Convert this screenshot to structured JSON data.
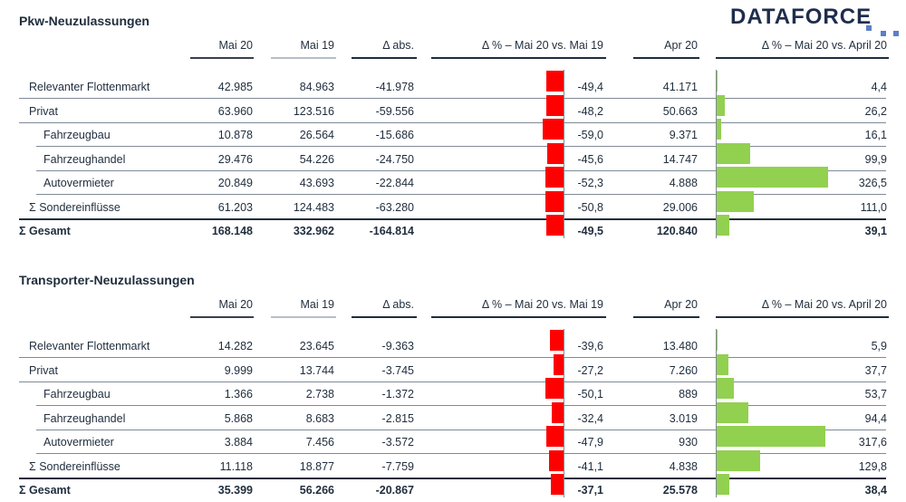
{
  "logo": {
    "text": "DATAFORCE"
  },
  "colors": {
    "negative_bar": "#ff0000",
    "positive_bar": "#92d050",
    "text": "#1f2d3d"
  },
  "chart_data": [
    {
      "type": "table",
      "title": "Pkw-Neuzulassungen",
      "columns": [
        "Mai 20",
        "Mai 19",
        "Δ abs.",
        "Δ % – Mai 20 vs. Mai 19",
        "Apr 20",
        "Δ % – Mai 20 vs. April 20"
      ],
      "rows": [
        {
          "label": "Relevanter Flottenmarkt",
          "indent": 0,
          "bold": false,
          "mai20": "42.985",
          "mai19": "84.963",
          "dabs": "-41.978",
          "dpct": "-49,4",
          "dpct_val": -49.4,
          "apr20": "41.171",
          "dpct2": "4,4",
          "dpct2_val": 4.4
        },
        {
          "label": "Privat",
          "indent": 0,
          "bold": false,
          "mai20": "63.960",
          "mai19": "123.516",
          "dabs": "-59.556",
          "dpct": "-48,2",
          "dpct_val": -48.2,
          "apr20": "50.663",
          "dpct2": "26,2",
          "dpct2_val": 26.2
        },
        {
          "label": "Fahrzeugbau",
          "indent": 1,
          "bold": false,
          "mai20": "10.878",
          "mai19": "26.564",
          "dabs": "-15.686",
          "dpct": "-59,0",
          "dpct_val": -59.0,
          "apr20": "9.371",
          "dpct2": "16,1",
          "dpct2_val": 16.1
        },
        {
          "label": "Fahrzeughandel",
          "indent": 1,
          "bold": false,
          "mai20": "29.476",
          "mai19": "54.226",
          "dabs": "-24.750",
          "dpct": "-45,6",
          "dpct_val": -45.6,
          "apr20": "14.747",
          "dpct2": "99,9",
          "dpct2_val": 99.9
        },
        {
          "label": "Autovermieter",
          "indent": 1,
          "bold": false,
          "mai20": "20.849",
          "mai19": "43.693",
          "dabs": "-22.844",
          "dpct": "-52,3",
          "dpct_val": -52.3,
          "apr20": "4.888",
          "dpct2": "326,5",
          "dpct2_val": 326.5
        },
        {
          "label": "Σ Sondereinflüsse",
          "indent": 0,
          "bold": false,
          "mai20": "61.203",
          "mai19": "124.483",
          "dabs": "-63.280",
          "dpct": "-50,8",
          "dpct_val": -50.8,
          "apr20": "29.006",
          "dpct2": "111,0",
          "dpct2_val": 111.0
        },
        {
          "label": "Σ Gesamt",
          "indent": 0,
          "bold": true,
          "mai20": "168.148",
          "mai19": "332.962",
          "dabs": "-164.814",
          "dpct": "-49,5",
          "dpct_val": -49.5,
          "apr20": "120.840",
          "dpct2": "39,1",
          "dpct2_val": 39.1
        }
      ]
    },
    {
      "type": "table",
      "title": "Transporter-Neuzulassungen",
      "columns": [
        "Mai 20",
        "Mai 19",
        "Δ abs.",
        "Δ % – Mai 20 vs. Mai 19",
        "Apr 20",
        "Δ % – Mai 20 vs. April 20"
      ],
      "rows": [
        {
          "label": "Relevanter Flottenmarkt",
          "indent": 0,
          "bold": false,
          "mai20": "14.282",
          "mai19": "23.645",
          "dabs": "-9.363",
          "dpct": "-39,6",
          "dpct_val": -39.6,
          "apr20": "13.480",
          "dpct2": "5,9",
          "dpct2_val": 5.9
        },
        {
          "label": "Privat",
          "indent": 0,
          "bold": false,
          "mai20": "9.999",
          "mai19": "13.744",
          "dabs": "-3.745",
          "dpct": "-27,2",
          "dpct_val": -27.2,
          "apr20": "7.260",
          "dpct2": "37,7",
          "dpct2_val": 37.7
        },
        {
          "label": "Fahrzeugbau",
          "indent": 1,
          "bold": false,
          "mai20": "1.366",
          "mai19": "2.738",
          "dabs": "-1.372",
          "dpct": "-50,1",
          "dpct_val": -50.1,
          "apr20": "889",
          "dpct2": "53,7",
          "dpct2_val": 53.7
        },
        {
          "label": "Fahrzeughandel",
          "indent": 1,
          "bold": false,
          "mai20": "5.868",
          "mai19": "8.683",
          "dabs": "-2.815",
          "dpct": "-32,4",
          "dpct_val": -32.4,
          "apr20": "3.019",
          "dpct2": "94,4",
          "dpct2_val": 94.4
        },
        {
          "label": "Autovermieter",
          "indent": 1,
          "bold": false,
          "mai20": "3.884",
          "mai19": "7.456",
          "dabs": "-3.572",
          "dpct": "-47,9",
          "dpct_val": -47.9,
          "apr20": "930",
          "dpct2": "317,6",
          "dpct2_val": 317.6
        },
        {
          "label": "Σ Sondereinflüsse",
          "indent": 0,
          "bold": false,
          "mai20": "11.118",
          "mai19": "18.877",
          "dabs": "-7.759",
          "dpct": "-41,1",
          "dpct_val": -41.1,
          "apr20": "4.838",
          "dpct2": "129,8",
          "dpct2_val": 129.8
        },
        {
          "label": "Σ Gesamt",
          "indent": 0,
          "bold": true,
          "mai20": "35.399",
          "mai19": "56.266",
          "dabs": "-20.867",
          "dpct": "-37,1",
          "dpct_val": -37.1,
          "apr20": "25.578",
          "dpct2": "38,4",
          "dpct2_val": 38.4
        }
      ]
    }
  ]
}
